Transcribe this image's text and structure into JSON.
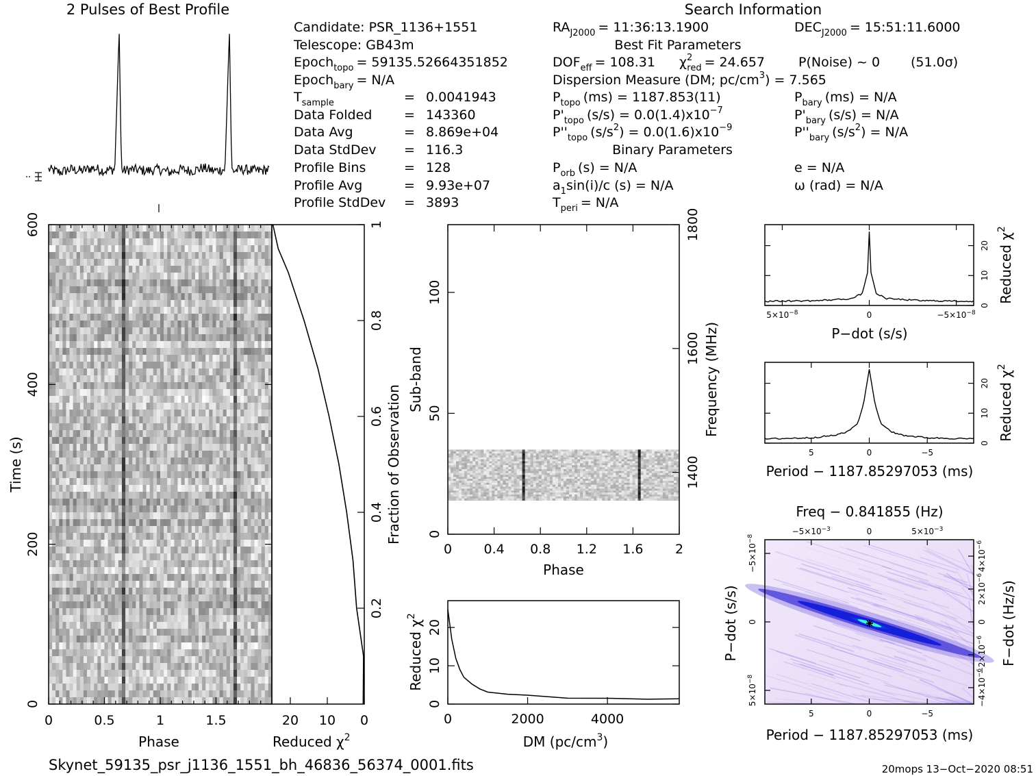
{
  "profile_title": "2 Pulses of Best Profile",
  "search_title": "Search Information",
  "info": {
    "candidate": "Candidate:  PSR_1136+1551",
    "telescope": "Telescope:  GB43m",
    "epoch_topo_label": "Epoch",
    "epoch_topo_sub": "topo",
    "epoch_topo_val": "= 59135.52664351852",
    "epoch_bary_label": "Epoch",
    "epoch_bary_sub": "bary",
    "epoch_bary_val": "= N/A",
    "tsample_label": "T",
    "tsample_sub": "sample",
    "tsample_eq": "=",
    "tsample_val": "0.0041943",
    "rows": [
      {
        "k": "Data Folded",
        "v": "143360"
      },
      {
        "k": "Data Avg",
        "v": "8.869e+04"
      },
      {
        "k": "Data StdDev",
        "v": "116.3"
      },
      {
        "k": "Profile Bins",
        "v": "128"
      },
      {
        "k": "Profile Avg",
        "v": "9.93e+07"
      },
      {
        "k": "Profile StdDev",
        "v": "3893"
      }
    ],
    "eq": "=",
    "ra_label": "RA",
    "ra_sub": "J2000",
    "ra_val": "= 11:36:13.1900",
    "dec_label": "DEC",
    "dec_sub": "J2000",
    "dec_val": "= 15:51:11.6000",
    "best_fit_title": "Best Fit Parameters",
    "dof_label": "DOF",
    "dof_sub": "eff",
    "dof_val": "= 108.31",
    "chi_label": "χ",
    "chi_sup": "2",
    "chi_sub": "red",
    "chi_val": "= 24.657",
    "pnoise": "P(Noise) ~ 0",
    "sigma": "(51.0σ)",
    "dm_text": "Dispersion Measure (DM; pc/cm",
    "dm_sup": "3",
    "dm_val": ") = 7.565",
    "ptopo_label": "P",
    "ptopo_sub": "topo",
    "ptopo_val": "(ms) =  1187.853(11)",
    "pbary_label": "P",
    "pbary_sub": "bary",
    "pbary_val": "(ms) = N/A",
    "pdtopo_label": "P'",
    "pdtopo_sub": "topo",
    "pdtopo_val": "(s/s) = 0.0(1.4)x10",
    "pdtopo_exp": "−7",
    "pdbary_label": "P'",
    "pdbary_sub": "bary",
    "pdbary_val": "(s/s) = N/A",
    "pddtopo_label": "P''",
    "pddtopo_sub": "topo",
    "pddtopo_val": "(s/s",
    "pddtopo_sup": "2",
    "pddtopo_val2": ") = 0.0(1.6)x10",
    "pddtopo_exp": "−9",
    "pddbary_label": "P''",
    "pddbary_sub": "bary",
    "pddbary_val": "(s/s",
    "pddbary_sup": "2",
    "pddbary_val2": ") = N/A",
    "binary_title": "Binary Parameters",
    "porb_label": "P",
    "porb_sub": "orb",
    "porb_val": "(s) = N/A",
    "ecc": "e = N/A",
    "a1_label": "a",
    "a1_sub": "1",
    "a1_val": "sin(i)/c (s) = N/A",
    "omega": "ω (rad) = N/A",
    "tperi_label": "T",
    "tperi_sub": "peri",
    "tperi_val": "= N/A"
  },
  "labels": {
    "time_axis": "Time (s)",
    "phase": "Phase",
    "reduced_chi": "Reduced χ",
    "chi_sup": "2",
    "fraction_obs": "Fraction of Observation",
    "sub_band": "Sub-band",
    "frequency": "Frequency (MHz)",
    "dm_axis_a": "DM (pc/cm",
    "dm_axis_sup": "3",
    "dm_axis_b": ")",
    "pdot_axis": "P−dot (s/s)",
    "period_axis": "Period − 1187.85297053 (ms)",
    "freq_axis": "Freq − 0.841855 (Hz)",
    "pdot_axis2": "P−dot (s/s)",
    "fdot_axis": "F−dot (Hz/s)"
  },
  "footer": {
    "filename": "Skynet_59135_psr_j1136_1551_bh_46836_56374_0001.fits",
    "stamp": "20mops 13−Oct−2020 08:51"
  },
  "ticks": {
    "time": [
      "0",
      "200",
      "400",
      "600"
    ],
    "phase_main": [
      "0",
      "0.5",
      "1",
      "1.5"
    ],
    "chi_bottom": [
      "20",
      "10",
      "0"
    ],
    "fraction": [
      "0.2",
      "0.4",
      "0.6",
      "0.8",
      "1"
    ],
    "subband": [
      "0",
      "50",
      "100"
    ],
    "phase_sb": [
      "0",
      "0.4",
      "0.8",
      "1.2",
      "1.6",
      "2"
    ],
    "freq": [
      "1400",
      "1600",
      "1800"
    ],
    "dm_x": [
      "0",
      "2000",
      "4000"
    ],
    "dm_y": [
      "0",
      "10",
      "20"
    ],
    "pdot_x": [
      "5×10",
      "0",
      "−5×10"
    ],
    "pdot_x_exp": "−8",
    "small_y": [
      "0",
      "10",
      "20"
    ],
    "period_x": [
      "5",
      "0",
      "−5"
    ],
    "freq_top": [
      "−5×10",
      "0",
      "5×10"
    ],
    "freq_top_exp": "−3",
    "pdot_y": [
      "−5×10",
      "0",
      "5×10"
    ],
    "pdot_y_exp": "−8",
    "fdot_y": [
      "−4×10",
      "−2×10",
      "0",
      "2×10",
      "4×10"
    ],
    "fdot_y_exp": "−6"
  },
  "chart_data": [
    {
      "type": "line",
      "title": "2 Pulses of Best Profile",
      "x": [
        0,
        0.1,
        0.2,
        0.3,
        0.4,
        0.5,
        0.6,
        0.64,
        0.66,
        0.68,
        0.75,
        0.9,
        1.0,
        1.1,
        1.2,
        1.3,
        1.4,
        1.5,
        1.6,
        1.64,
        1.66,
        1.68,
        1.75,
        1.9,
        2.0
      ],
      "values": [
        0.05,
        0.03,
        0.05,
        0.04,
        0.06,
        0.04,
        0.05,
        1.0,
        0.05,
        0.04,
        0.05,
        0.04,
        0.05,
        0.03,
        0.05,
        0.04,
        0.06,
        0.04,
        0.05,
        1.0,
        0.05,
        0.04,
        0.05,
        0.04,
        0.05
      ]
    },
    {
      "type": "heatmap",
      "xlabel": "Phase",
      "ylabel": "Time (s)",
      "xlim": [
        0,
        2
      ],
      "ylim": [
        0,
        600
      ],
      "pulse_phases": [
        0.65,
        1.65
      ]
    },
    {
      "type": "line",
      "xlabel": "Reduced χ2",
      "ylabel": "Fraction of Observation",
      "xlim": [
        25,
        0
      ],
      "ylim": [
        0,
        1
      ],
      "y": [
        0.0,
        0.1,
        0.2,
        0.3,
        0.4,
        0.5,
        0.6,
        0.7,
        0.8,
        0.9,
        0.95,
        1.0
      ],
      "x": [
        0.3,
        0.8,
        1.5,
        2.5,
        4.5,
        7.0,
        9.5,
        13.0,
        16.5,
        20.5,
        23.0,
        24.7
      ]
    },
    {
      "type": "heatmap",
      "xlabel": "Phase",
      "ylabel": "Sub-band",
      "y2label": "Frequency (MHz)",
      "xlim": [
        0,
        2
      ],
      "ylim": [
        0,
        128
      ],
      "y2lim": [
        1300,
        1800
      ],
      "band_occupied": [
        14,
        35
      ],
      "pulse_phases": [
        0.65,
        1.65
      ]
    },
    {
      "type": "line",
      "xlabel": "DM (pc/cm3)",
      "ylabel": "Reduced χ2",
      "xlim": [
        0,
        5800
      ],
      "ylim": [
        0,
        27
      ],
      "x": [
        0,
        100,
        200,
        300,
        400,
        600,
        800,
        1000,
        1500,
        2000,
        3000,
        4000,
        5000,
        5800
      ],
      "values": [
        24.7,
        17.0,
        12.0,
        9.0,
        7.2,
        5.2,
        4.0,
        3.3,
        2.6,
        2.2,
        1.7,
        1.5,
        1.4,
        1.5
      ]
    },
    {
      "type": "line",
      "xlabel": "P−dot (s/s)",
      "ylabel": "Reduced χ2",
      "xlim": [
        6e-08,
        -6e-08
      ],
      "ylim": [
        0,
        27
      ],
      "x": [
        6e-08,
        3e-08,
        1e-08,
        4e-09,
        1e-09,
        0,
        -1e-09,
        -4e-09,
        -1e-08,
        -3e-08,
        -6e-08
      ],
      "values": [
        1.4,
        1.6,
        2.3,
        4.0,
        11.0,
        24.7,
        11.0,
        4.0,
        2.3,
        1.6,
        1.4
      ]
    },
    {
      "type": "line",
      "xlabel": "Period − 1187.85297053 (ms)",
      "ylabel": "Reduced χ2",
      "xlim": [
        9,
        -9
      ],
      "ylim": [
        0,
        27
      ],
      "x": [
        9,
        5,
        3,
        2,
        1,
        0.5,
        0,
        -0.5,
        -1,
        -2,
        -3,
        -5,
        -9
      ],
      "values": [
        1.4,
        1.8,
        2.6,
        3.6,
        6.5,
        13.0,
        24.7,
        13.0,
        6.5,
        3.6,
        2.6,
        1.8,
        1.4
      ]
    },
    {
      "type": "heatmap",
      "xlabel": "Period − 1187.85297053 (ms)",
      "ylabel": "P−dot (s/s)",
      "x2label": "Freq − 0.841855 (Hz)",
      "y2label": "F−dot (Hz/s)",
      "xlim": [
        9,
        -9
      ],
      "ylim": [
        6e-08,
        -6e-08
      ],
      "peak": [
        0,
        0
      ]
    }
  ]
}
